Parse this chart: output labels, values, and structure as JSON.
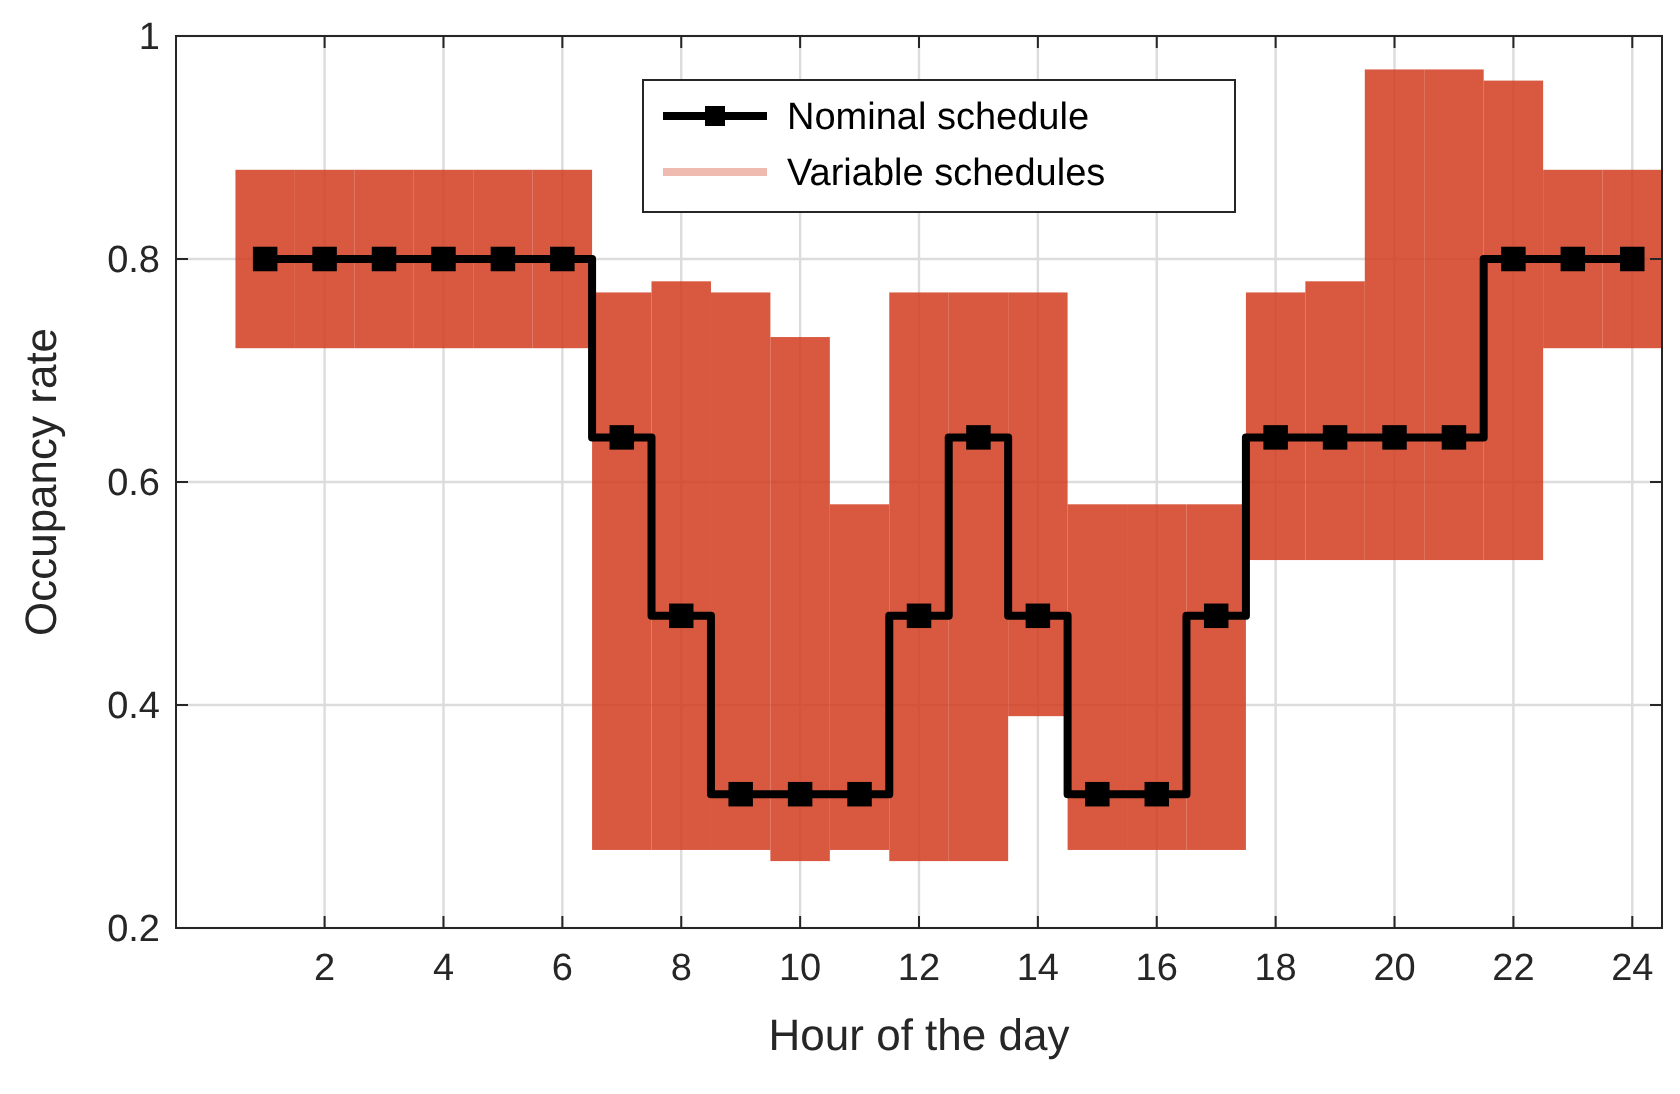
{
  "chart_data": {
    "type": "step",
    "xlabel": "Hour of the day",
    "ylabel": "Occupancy rate",
    "xlim": [
      -0.5,
      24.5
    ],
    "xticks": [
      2,
      4,
      6,
      8,
      10,
      12,
      14,
      16,
      18,
      20,
      22,
      24
    ],
    "ylim": [
      0.2,
      1
    ],
    "yticks": [
      0.2,
      0.4,
      0.6,
      0.8,
      1
    ],
    "grid": true,
    "legend": "top",
    "x": [
      1,
      2,
      3,
      4,
      5,
      6,
      7,
      8,
      9,
      10,
      11,
      12,
      13,
      14,
      15,
      16,
      17,
      18,
      19,
      20,
      21,
      22,
      23,
      24
    ],
    "series": [
      {
        "name": "Variable schedules",
        "type": "bar",
        "color": "#d13b1f",
        "base": [
          0.72,
          0.72,
          0.72,
          0.72,
          0.72,
          0.72,
          0.27,
          0.27,
          0.27,
          0.26,
          0.27,
          0.26,
          0.26,
          0.39,
          0.27,
          0.27,
          0.27,
          0.53,
          0.53,
          0.53,
          0.53,
          0.53,
          0.72,
          0.72
        ],
        "values": [
          0.16,
          0.16,
          0.16,
          0.16,
          0.16,
          0.16,
          0.5,
          0.51,
          0.5,
          0.47,
          0.31,
          0.51,
          0.51,
          0.38,
          0.31,
          0.31,
          0.31,
          0.24,
          0.25,
          0.44,
          0.44,
          0.43,
          0.16,
          0.16
        ]
      },
      {
        "name": "Nominal schedule",
        "color": "#000000",
        "marker": "square",
        "values": [
          0.8,
          0.8,
          0.8,
          0.8,
          0.8,
          0.8,
          0.64,
          0.48,
          0.32,
          0.32,
          0.32,
          0.48,
          0.64,
          0.48,
          0.32,
          0.32,
          0.48,
          0.64,
          0.64,
          0.64,
          0.64,
          0.8,
          0.8,
          0.8
        ]
      }
    ]
  }
}
